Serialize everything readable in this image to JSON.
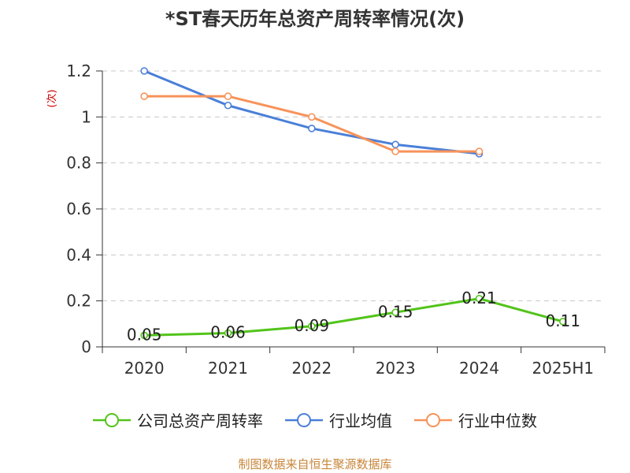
{
  "chart_data": {
    "type": "line",
    "title": "*ST春天历年总资产周转率情况(次)",
    "ylabel": "(次)",
    "categories": [
      "2020",
      "2021",
      "2022",
      "2023",
      "2024",
      "2025H1"
    ],
    "ylim": [
      0,
      1.2
    ],
    "yticks": [
      "0",
      "0.2",
      "0.4",
      "0.6",
      "0.8",
      "1",
      "1.2"
    ],
    "grid": true,
    "legend_position": "bottom",
    "series": [
      {
        "name": "公司总资产周转率",
        "color": "#52c41a",
        "values": [
          0.05,
          0.06,
          0.09,
          0.15,
          0.21,
          0.11
        ],
        "labels": [
          "0.05",
          "0.06",
          "0.09",
          "0.15",
          "0.21",
          "0.11"
        ]
      },
      {
        "name": "行业均值",
        "color": "#4a7fd8",
        "values": [
          1.2,
          1.05,
          0.95,
          0.88,
          0.84,
          null
        ]
      },
      {
        "name": "行业中位数",
        "color": "#f7935a",
        "values": [
          1.09,
          1.09,
          1.0,
          0.85,
          0.85,
          null
        ]
      }
    ]
  },
  "source": "制图数据来自恒生聚源数据库"
}
